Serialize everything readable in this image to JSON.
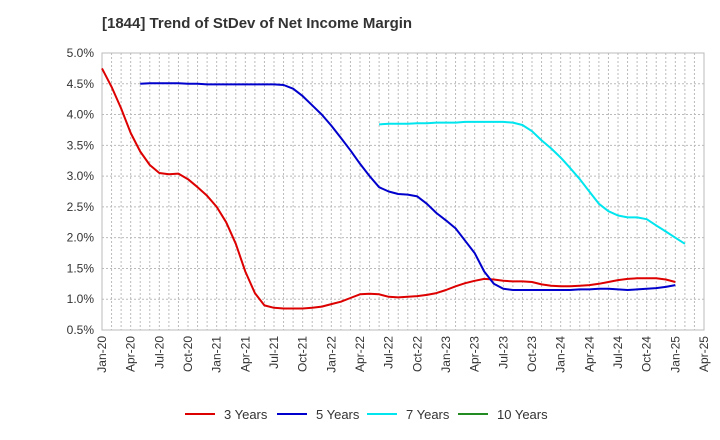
{
  "chart_data": {
    "type": "line",
    "title": "[1844]  Trend of StDev of Net Income Margin",
    "xlabel": "",
    "ylabel": "",
    "ylim": [
      0.5,
      5.0
    ],
    "y_ticks": [
      "0.5%",
      "1.0%",
      "1.5%",
      "2.0%",
      "2.5%",
      "3.0%",
      "3.5%",
      "4.0%",
      "4.5%",
      "5.0%"
    ],
    "x_ticks": [
      "Jan-20",
      "Apr-20",
      "Jul-20",
      "Oct-20",
      "Jan-21",
      "Apr-21",
      "Jul-21",
      "Oct-21",
      "Jan-22",
      "Apr-22",
      "Jul-22",
      "Oct-22",
      "Jan-23",
      "Apr-23",
      "Jul-23",
      "Oct-23",
      "Jan-24",
      "Apr-24",
      "Jul-24",
      "Oct-24",
      "Jan-25",
      "Apr-25"
    ],
    "grid": true,
    "legend_position": "bottom",
    "series": [
      {
        "name": "3 Years",
        "color": "#dd0000",
        "values": [
          [
            "2020-01",
            4.75
          ],
          [
            "2020-02",
            4.45
          ],
          [
            "2020-03",
            4.1
          ],
          [
            "2020-04",
            3.7
          ],
          [
            "2020-05",
            3.4
          ],
          [
            "2020-06",
            3.18
          ],
          [
            "2020-07",
            3.05
          ],
          [
            "2020-08",
            3.03
          ],
          [
            "2020-09",
            3.04
          ],
          [
            "2020-10",
            2.95
          ],
          [
            "2020-11",
            2.82
          ],
          [
            "2020-12",
            2.68
          ],
          [
            "2021-01",
            2.5
          ],
          [
            "2021-02",
            2.25
          ],
          [
            "2021-03",
            1.9
          ],
          [
            "2021-04",
            1.45
          ],
          [
            "2021-05",
            1.1
          ],
          [
            "2021-06",
            0.9
          ],
          [
            "2021-07",
            0.86
          ],
          [
            "2021-08",
            0.85
          ],
          [
            "2021-09",
            0.85
          ],
          [
            "2021-10",
            0.85
          ],
          [
            "2021-11",
            0.86
          ],
          [
            "2021-12",
            0.88
          ],
          [
            "2022-01",
            0.92
          ],
          [
            "2022-02",
            0.96
          ],
          [
            "2022-03",
            1.02
          ],
          [
            "2022-04",
            1.08
          ],
          [
            "2022-05",
            1.09
          ],
          [
            "2022-06",
            1.08
          ],
          [
            "2022-07",
            1.04
          ],
          [
            "2022-08",
            1.03
          ],
          [
            "2022-09",
            1.04
          ],
          [
            "2022-10",
            1.05
          ],
          [
            "2022-11",
            1.07
          ],
          [
            "2022-12",
            1.1
          ],
          [
            "2023-01",
            1.15
          ],
          [
            "2023-02",
            1.21
          ],
          [
            "2023-03",
            1.26
          ],
          [
            "2023-04",
            1.3
          ],
          [
            "2023-05",
            1.33
          ],
          [
            "2023-06",
            1.32
          ],
          [
            "2023-07",
            1.3
          ],
          [
            "2023-08",
            1.29
          ],
          [
            "2023-09",
            1.29
          ],
          [
            "2023-10",
            1.28
          ],
          [
            "2023-11",
            1.24
          ],
          [
            "2023-12",
            1.22
          ],
          [
            "2024-01",
            1.21
          ],
          [
            "2024-02",
            1.21
          ],
          [
            "2024-03",
            1.22
          ],
          [
            "2024-04",
            1.23
          ],
          [
            "2024-05",
            1.25
          ],
          [
            "2024-06",
            1.28
          ],
          [
            "2024-07",
            1.31
          ],
          [
            "2024-08",
            1.33
          ],
          [
            "2024-09",
            1.34
          ],
          [
            "2024-10",
            1.34
          ],
          [
            "2024-11",
            1.34
          ],
          [
            "2024-12",
            1.32
          ],
          [
            "2025-01",
            1.28
          ]
        ]
      },
      {
        "name": "5 Years",
        "color": "#0000cc",
        "values": [
          [
            "2020-05",
            4.5
          ],
          [
            "2020-06",
            4.51
          ],
          [
            "2020-07",
            4.51
          ],
          [
            "2020-08",
            4.51
          ],
          [
            "2020-09",
            4.51
          ],
          [
            "2020-10",
            4.5
          ],
          [
            "2020-11",
            4.5
          ],
          [
            "2020-12",
            4.49
          ],
          [
            "2021-01",
            4.49
          ],
          [
            "2021-02",
            4.49
          ],
          [
            "2021-03",
            4.49
          ],
          [
            "2021-04",
            4.49
          ],
          [
            "2021-05",
            4.49
          ],
          [
            "2021-06",
            4.49
          ],
          [
            "2021-07",
            4.49
          ],
          [
            "2021-08",
            4.48
          ],
          [
            "2021-09",
            4.42
          ],
          [
            "2021-10",
            4.3
          ],
          [
            "2021-11",
            4.15
          ],
          [
            "2021-12",
            4.0
          ],
          [
            "2022-01",
            3.82
          ],
          [
            "2022-02",
            3.62
          ],
          [
            "2022-03",
            3.42
          ],
          [
            "2022-04",
            3.2
          ],
          [
            "2022-05",
            3.0
          ],
          [
            "2022-06",
            2.82
          ],
          [
            "2022-07",
            2.75
          ],
          [
            "2022-08",
            2.71
          ],
          [
            "2022-09",
            2.7
          ],
          [
            "2022-10",
            2.67
          ],
          [
            "2022-11",
            2.55
          ],
          [
            "2022-12",
            2.4
          ],
          [
            "2023-01",
            2.28
          ],
          [
            "2023-02",
            2.15
          ],
          [
            "2023-03",
            1.95
          ],
          [
            "2023-04",
            1.75
          ],
          [
            "2023-05",
            1.45
          ],
          [
            "2023-06",
            1.25
          ],
          [
            "2023-07",
            1.17
          ],
          [
            "2023-08",
            1.15
          ],
          [
            "2023-09",
            1.15
          ],
          [
            "2023-10",
            1.15
          ],
          [
            "2023-11",
            1.15
          ],
          [
            "2023-12",
            1.15
          ],
          [
            "2024-01",
            1.15
          ],
          [
            "2024-02",
            1.15
          ],
          [
            "2024-03",
            1.16
          ],
          [
            "2024-04",
            1.16
          ],
          [
            "2024-05",
            1.17
          ],
          [
            "2024-06",
            1.17
          ],
          [
            "2024-07",
            1.16
          ],
          [
            "2024-08",
            1.15
          ],
          [
            "2024-09",
            1.16
          ],
          [
            "2024-10",
            1.17
          ],
          [
            "2024-11",
            1.18
          ],
          [
            "2024-12",
            1.2
          ],
          [
            "2025-01",
            1.23
          ]
        ]
      },
      {
        "name": "7 Years",
        "color": "#00e5ee",
        "values": [
          [
            "2022-06",
            3.84
          ],
          [
            "2022-07",
            3.85
          ],
          [
            "2022-08",
            3.85
          ],
          [
            "2022-09",
            3.85
          ],
          [
            "2022-10",
            3.86
          ],
          [
            "2022-11",
            3.86
          ],
          [
            "2022-12",
            3.87
          ],
          [
            "2023-01",
            3.87
          ],
          [
            "2023-02",
            3.87
          ],
          [
            "2023-03",
            3.88
          ],
          [
            "2023-04",
            3.88
          ],
          [
            "2023-05",
            3.88
          ],
          [
            "2023-06",
            3.88
          ],
          [
            "2023-07",
            3.88
          ],
          [
            "2023-08",
            3.87
          ],
          [
            "2023-09",
            3.83
          ],
          [
            "2023-10",
            3.73
          ],
          [
            "2023-11",
            3.58
          ],
          [
            "2023-12",
            3.45
          ],
          [
            "2024-01",
            3.3
          ],
          [
            "2024-02",
            3.13
          ],
          [
            "2024-03",
            2.95
          ],
          [
            "2024-04",
            2.75
          ],
          [
            "2024-05",
            2.55
          ],
          [
            "2024-06",
            2.43
          ],
          [
            "2024-07",
            2.36
          ],
          [
            "2024-08",
            2.33
          ],
          [
            "2024-09",
            2.33
          ],
          [
            "2024-10",
            2.3
          ],
          [
            "2024-11",
            2.2
          ],
          [
            "2024-12",
            2.1
          ],
          [
            "2025-01",
            2.0
          ],
          [
            "2025-02",
            1.9
          ]
        ]
      },
      {
        "name": "10 Years",
        "color": "#228b22",
        "values": []
      }
    ]
  }
}
